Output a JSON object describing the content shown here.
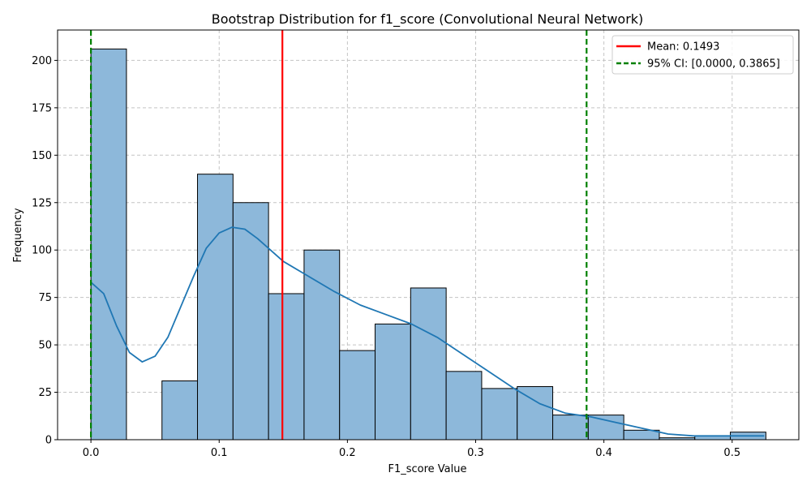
{
  "chart_data": {
    "type": "bar",
    "title": "Bootstrap Distribution for f1_score (Convolutional Neural Network)",
    "xlabel": "F1_score Value",
    "ylabel": "Frequency",
    "xlim": [
      -0.026,
      0.552
    ],
    "ylim": [
      0,
      216
    ],
    "grid": true,
    "legend_position": "top-right",
    "bin_width": 0.0277,
    "bins": [
      {
        "x0": 0.0,
        "count": 206
      },
      {
        "x0": 0.0277,
        "count": 0
      },
      {
        "x0": 0.0554,
        "count": 31
      },
      {
        "x0": 0.0831,
        "count": 140
      },
      {
        "x0": 0.1108,
        "count": 125
      },
      {
        "x0": 0.1385,
        "count": 77
      },
      {
        "x0": 0.1662,
        "count": 100
      },
      {
        "x0": 0.1939,
        "count": 47
      },
      {
        "x0": 0.2216,
        "count": 61
      },
      {
        "x0": 0.2493,
        "count": 80
      },
      {
        "x0": 0.277,
        "count": 36
      },
      {
        "x0": 0.3047,
        "count": 27
      },
      {
        "x0": 0.3324,
        "count": 28
      },
      {
        "x0": 0.3601,
        "count": 13
      },
      {
        "x0": 0.3878,
        "count": 13
      },
      {
        "x0": 0.4155,
        "count": 5
      },
      {
        "x0": 0.4432,
        "count": 1
      },
      {
        "x0": 0.4709,
        "count": 2
      },
      {
        "x0": 0.4986,
        "count": 4
      }
    ],
    "kde": {
      "x": [
        0.0,
        0.01,
        0.02,
        0.03,
        0.04,
        0.05,
        0.06,
        0.07,
        0.08,
        0.09,
        0.1,
        0.11,
        0.12,
        0.13,
        0.14,
        0.15,
        0.17,
        0.19,
        0.21,
        0.23,
        0.25,
        0.27,
        0.29,
        0.31,
        0.33,
        0.35,
        0.37,
        0.39,
        0.41,
        0.43,
        0.45,
        0.47,
        0.49,
        0.51,
        0.525
      ],
      "y": [
        83,
        77,
        60,
        46,
        41,
        44,
        54,
        70,
        86,
        101,
        109,
        112,
        111,
        106,
        100,
        94,
        86,
        78,
        71,
        66,
        61,
        54,
        45,
        36,
        27,
        19,
        14,
        12,
        9,
        6,
        3,
        2,
        2,
        2,
        2
      ]
    },
    "xticks": [
      0.0,
      0.1,
      0.2,
      0.3,
      0.4,
      0.5
    ],
    "xtick_labels": [
      "0.0",
      "0.1",
      "0.2",
      "0.3",
      "0.4",
      "0.5"
    ],
    "yticks": [
      0,
      25,
      50,
      75,
      100,
      125,
      150,
      175,
      200
    ],
    "ytick_labels": [
      "0",
      "25",
      "50",
      "75",
      "100",
      "125",
      "150",
      "175",
      "200"
    ],
    "mean": 0.1493,
    "ci": [
      0.0,
      0.3865
    ],
    "legend": [
      {
        "label": "Mean: 0.1493",
        "color": "#ff0000",
        "style": "solid"
      },
      {
        "label": "95% CI: [0.0000, 0.3865]",
        "color": "#008000",
        "style": "dashed"
      }
    ],
    "colors": {
      "bar_fill": "#8db8da",
      "bar_edge": "#000000",
      "kde": "#1f77b4",
      "grid": "#c4c4c4"
    }
  }
}
